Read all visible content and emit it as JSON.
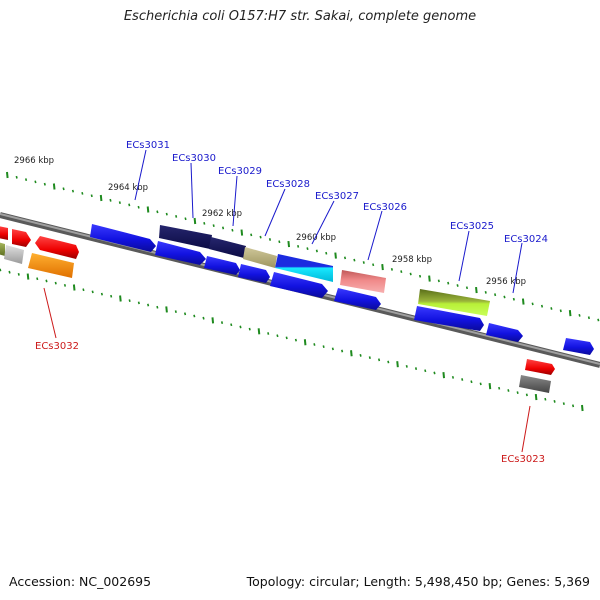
{
  "title": "Escherichia coli O157:H7 str. Sakai, complete genome",
  "footer": {
    "accession": "Accession: NC_002695",
    "summary": "Topology: circular; Length: 5,498,450 bp; Genes: 5,369"
  },
  "scale_labels": [
    "2966 kbp",
    "2964 kbp",
    "2962 kbp",
    "2960 kbp",
    "2958 kbp",
    "2956 kbp"
  ],
  "gene_labels": {
    "top": [
      "ECs3031",
      "ECs3030",
      "ECs3029",
      "ECs3028",
      "ECs3027",
      "ECs3026",
      "ECs3025",
      "ECs3024"
    ],
    "bottom": [
      "ECs3032",
      "ECs3023"
    ]
  },
  "colors": {
    "top_label": "#1a1acc",
    "bottom_label": "#cc1a1a",
    "backbone": "#808080",
    "tick": "#1e8a1e"
  }
}
